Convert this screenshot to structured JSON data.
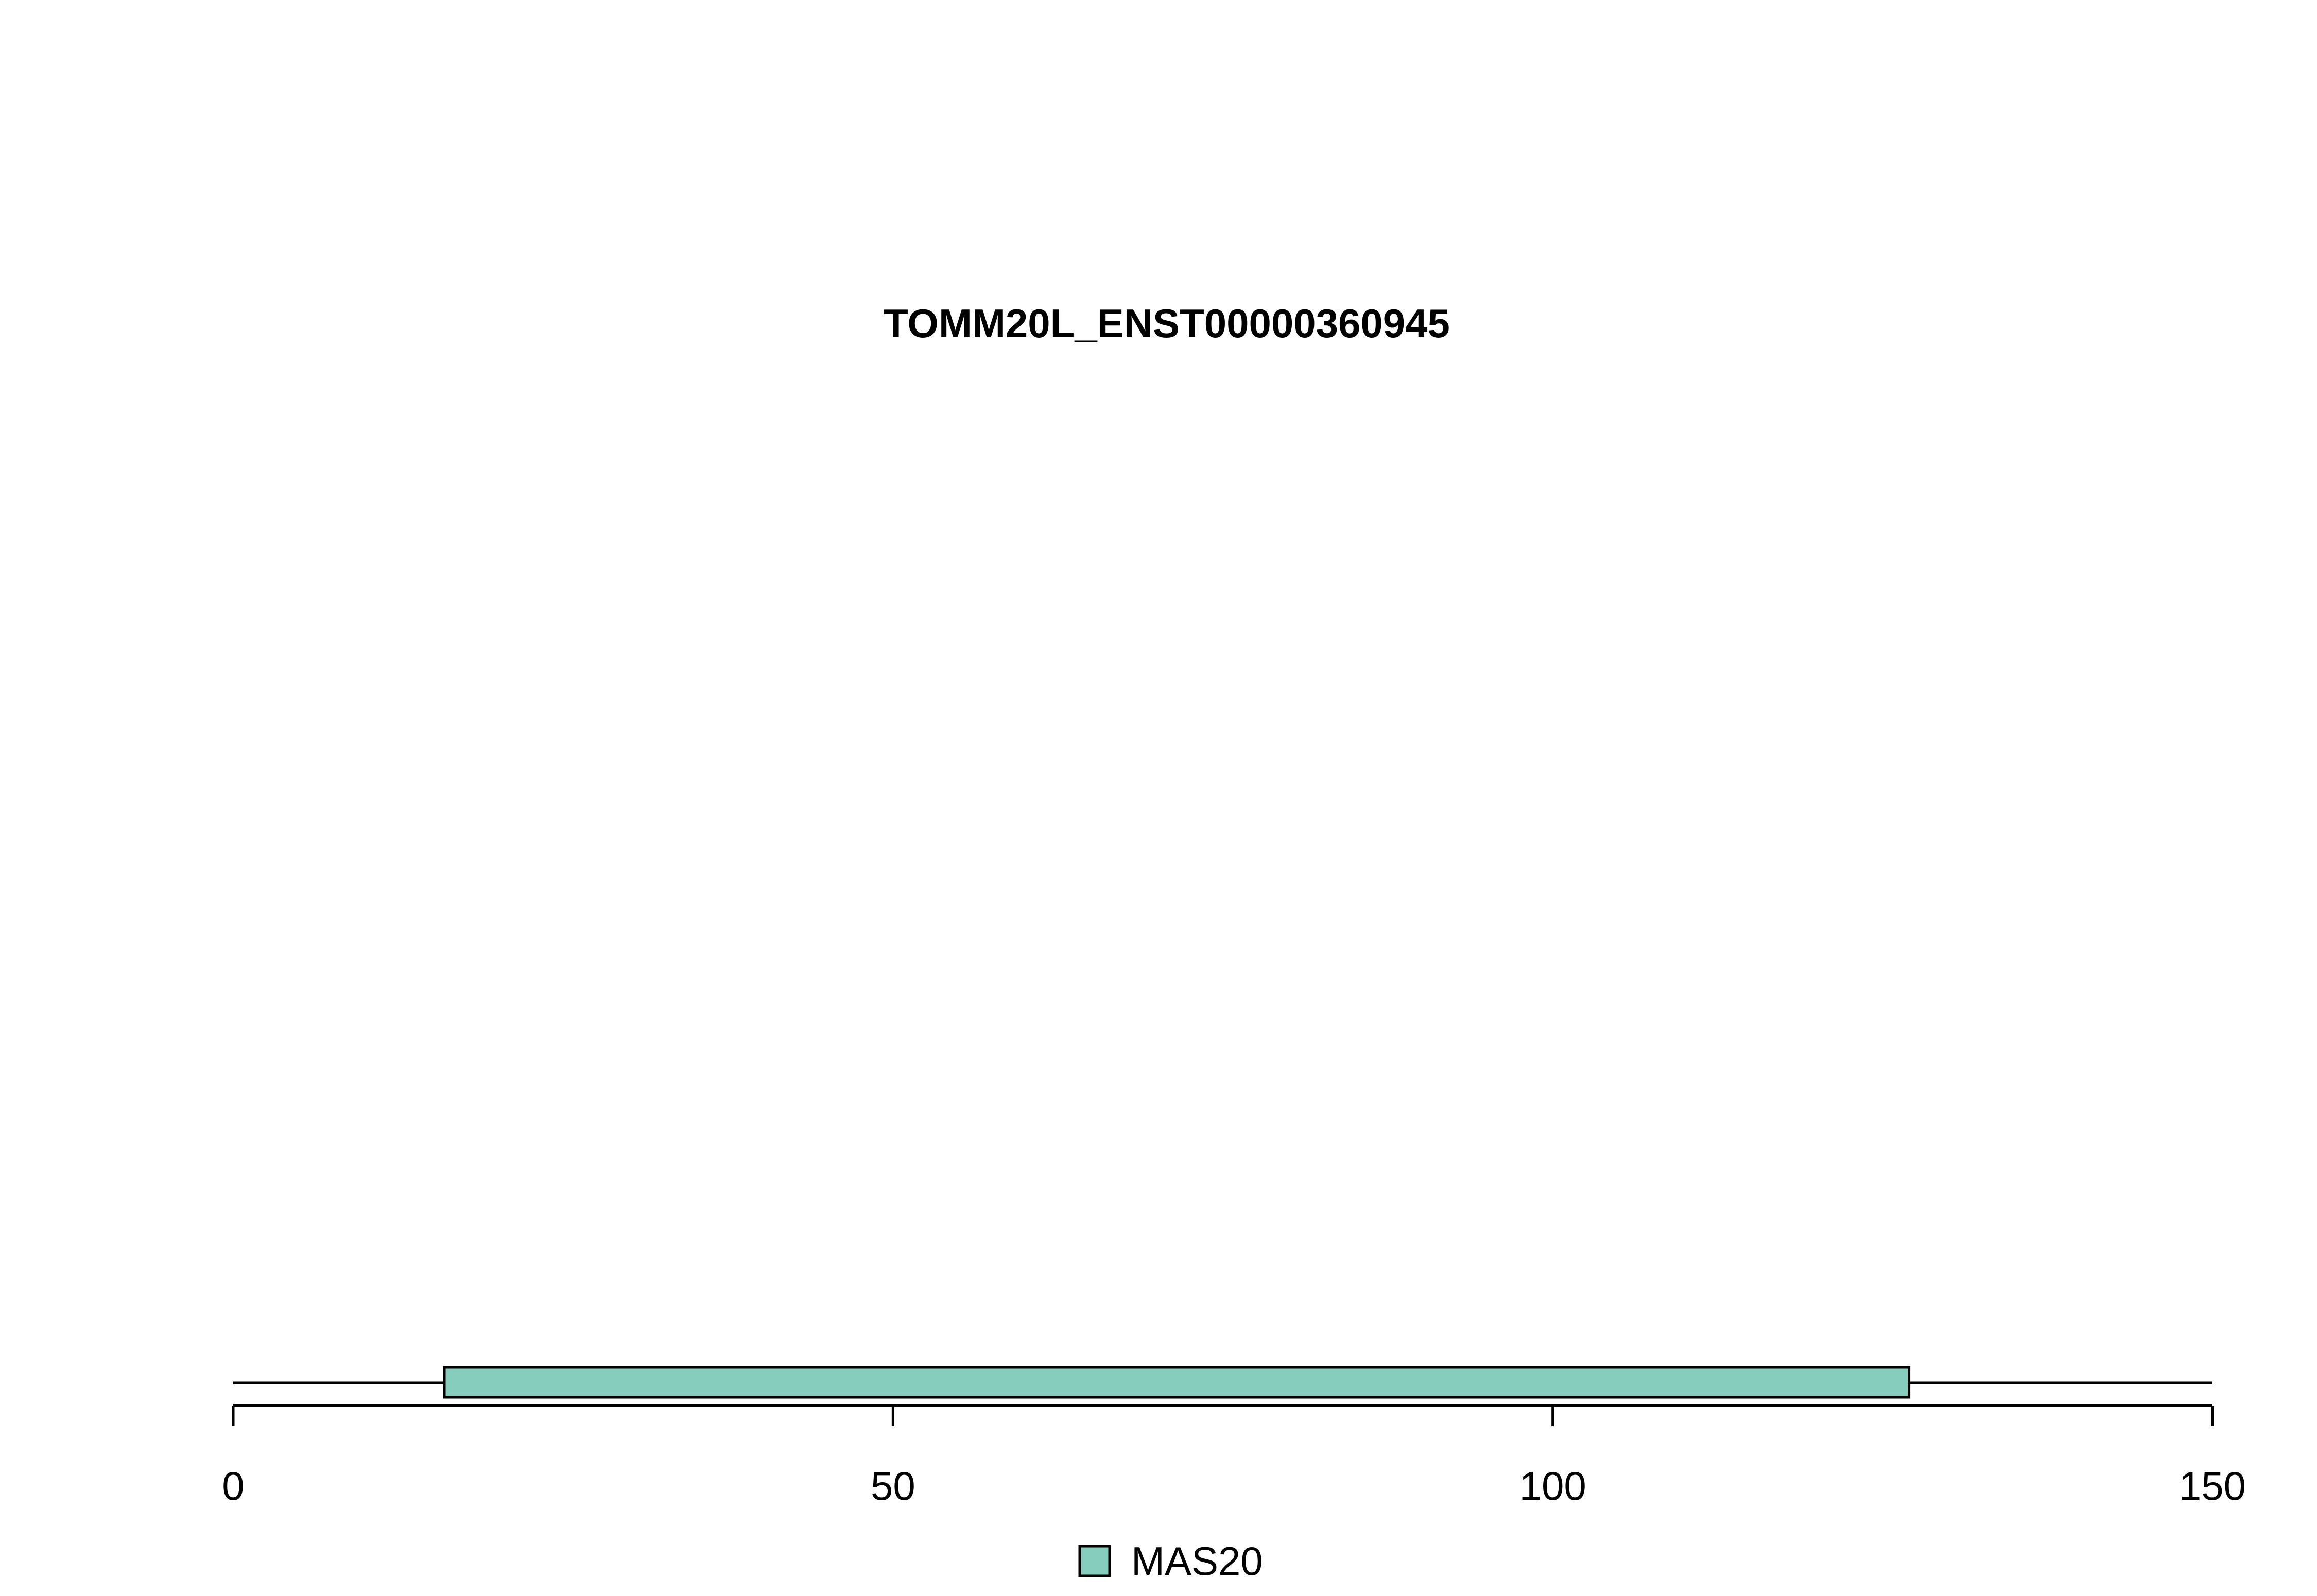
{
  "chart_data": {
    "type": "domain-map",
    "title": "TOMM20L_ENST00000360945",
    "protein_length": 150,
    "xlim": [
      0,
      150
    ],
    "x_ticks": [
      0,
      50,
      100,
      150
    ],
    "domains": [
      {
        "name": "MAS20",
        "start": 16,
        "end": 127,
        "color": "#86cdbd"
      }
    ],
    "legend": {
      "placement": "bottom-center",
      "entries": [
        {
          "label": "MAS20",
          "color": "#86cdbd"
        }
      ]
    }
  }
}
